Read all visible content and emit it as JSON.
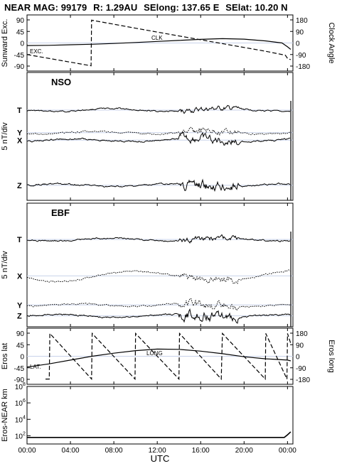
{
  "header": {
    "title": "NEAR MAG: 99179",
    "r": "R: 1.29AU",
    "selong": "SElong:  137.65 E",
    "selat": "SElat:   10.20 N"
  },
  "xaxis": {
    "label": "UTC",
    "ticks": [
      "00:00",
      "04:00",
      "08:00",
      "12:00",
      "16:00",
      "20:00",
      "00:00"
    ],
    "tick_hours": [
      0,
      4,
      8,
      12,
      16,
      20,
      24
    ],
    "range_hours": [
      0,
      24.5
    ]
  },
  "colors": {
    "trace": "#000000",
    "guide": "#c8d2ea",
    "frame": "#000000"
  },
  "chart_data": [
    {
      "type": "line",
      "panel": "orientation",
      "ylabel": "Sunward Exc.",
      "ylabel_right": "Clock Angle",
      "yticks_left": [
        "90",
        "45",
        "0",
        "-45",
        "-90"
      ],
      "yticks_right": [
        "180",
        "90",
        "0",
        "-90",
        "-180"
      ],
      "ylim": [
        -90,
        90
      ],
      "series": [
        {
          "name": "EXC.",
          "style": "solid",
          "x": [
            0,
            2,
            4,
            6,
            8,
            10,
            12,
            14,
            16,
            18,
            20,
            22,
            23.5,
            24,
            24.3
          ],
          "y": [
            -10,
            -9,
            -7,
            -5,
            -2,
            2,
            6,
            10,
            14,
            17,
            15,
            8,
            0,
            -15,
            -25
          ]
        },
        {
          "name": "CLK",
          "style": "dashed",
          "scale": "right",
          "x": [
            0,
            5.9,
            5.95,
            10,
            14,
            18,
            22,
            23.8,
            24,
            24.3
          ],
          "y": [
            -90,
            -178,
            178,
            115,
            55,
            -5,
            -65,
            -95,
            -120,
            -130
          ]
        }
      ]
    },
    {
      "type": "line",
      "panel": "field-nso",
      "ylabel": "5 nT/div",
      "panel_label": "NSO",
      "series": [
        {
          "name": "T",
          "style": "solid",
          "offset": 10
        },
        {
          "name": "Y",
          "style": "dotted",
          "offset": 16
        },
        {
          "name": "X",
          "style": "solid",
          "offset": 18
        },
        {
          "name": "Z",
          "style": "solid",
          "offset": 30
        }
      ]
    },
    {
      "type": "line",
      "panel": "field-ebf",
      "ylabel": "5 nT/div",
      "panel_label": "EBF",
      "series": [
        {
          "name": "T",
          "style": "solid",
          "offset": 10
        },
        {
          "name": "X",
          "style": "dotted",
          "offset": 20
        },
        {
          "name": "Y",
          "style": "dotted",
          "offset": 28
        },
        {
          "name": "Z",
          "style": "solid",
          "offset": 31
        }
      ]
    },
    {
      "type": "line",
      "panel": "eros-position",
      "ylabel": "Eros lat",
      "ylabel_right": "Eros long",
      "yticks_left": [
        "90",
        "45",
        "0",
        "-45",
        "-90"
      ],
      "yticks_right": [
        "180",
        "90",
        "0",
        "-90",
        "-180"
      ],
      "ylim": [
        -90,
        90
      ],
      "series": [
        {
          "name": "LAT.",
          "style": "solid",
          "x": [
            0,
            2,
            4,
            6,
            8,
            10,
            12,
            14,
            16,
            18,
            20,
            22,
            24,
            24.3
          ],
          "y": [
            -42,
            -30,
            -15,
            0,
            12,
            22,
            28,
            27,
            20,
            10,
            -2,
            -10,
            -15,
            -18
          ]
        },
        {
          "name": "LONG",
          "style": "dashed",
          "scale": "right",
          "x": [
            1.7,
            2.05,
            2.1,
            5.95,
            6.0,
            9.95,
            10.0,
            14.0,
            14.05,
            17.9,
            18.0,
            21.95,
            22.0,
            23.95,
            24.0,
            24.3
          ],
          "y": [
            -178,
            -178,
            178,
            -178,
            178,
            -178,
            178,
            -178,
            178,
            -178,
            178,
            -178,
            178,
            -178,
            178,
            100
          ]
        }
      ]
    },
    {
      "type": "line",
      "panel": "range",
      "ylabel": "Eros-NEAR km",
      "yticks_left": [
        "10^8",
        "10^6",
        "10^4",
        "10^2"
      ],
      "yscale": "log",
      "ylim": [
        10,
        100000000
      ],
      "series": [
        {
          "style": "solid",
          "x": [
            0,
            23.5,
            23.7,
            24,
            24.3
          ],
          "y": [
            63,
            63,
            63,
            130,
            300
          ]
        }
      ]
    }
  ]
}
